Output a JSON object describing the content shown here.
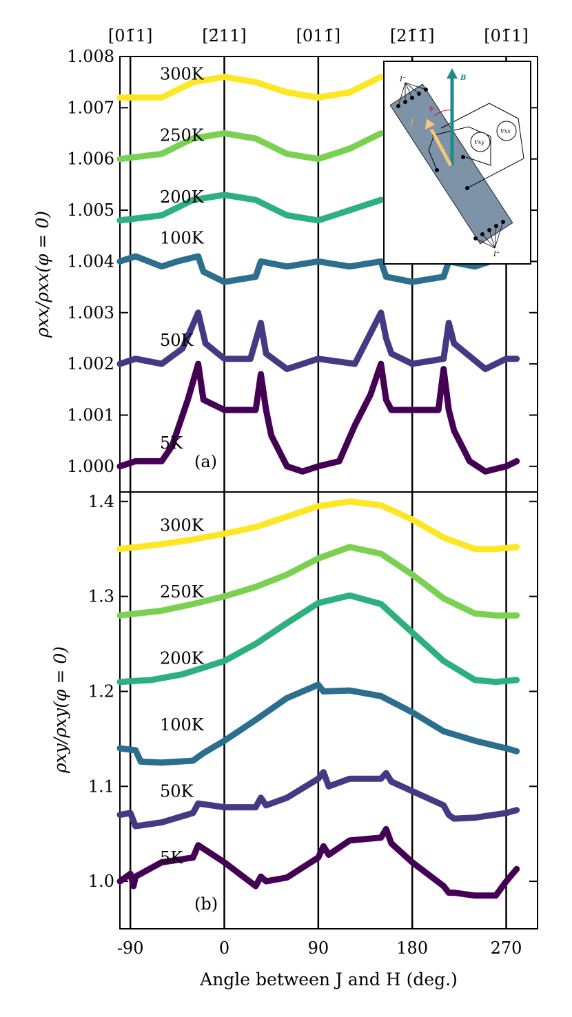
{
  "chart_data": [
    {
      "type": "line",
      "panel_label": "(a)",
      "ylabel": "ρxx/ρxx(φ = 0)",
      "xlabel": "",
      "xlim": [
        -100,
        300
      ],
      "ylim": [
        0.9995,
        1.008
      ],
      "yticks": [
        "1.000",
        "1.001",
        "1.002",
        "1.003",
        "1.004",
        "1.005",
        "1.006",
        "1.007",
        "1.008"
      ],
      "grid": false,
      "vlines": [
        -90,
        0,
        90,
        180,
        270
      ],
      "top_tick_labels": [
        "[01̄1]",
        "[2̄11]",
        "[011̄]",
        "[21̄1̄]",
        "[01̄1]"
      ],
      "series": [
        {
          "name": "300K",
          "color": "#fde725",
          "x": [
            -100,
            -60,
            -30,
            0,
            30,
            60,
            90,
            120,
            150
          ],
          "y": [
            1.0072,
            1.0072,
            1.0075,
            1.0076,
            1.0075,
            1.0073,
            1.0072,
            1.0073,
            1.0076
          ]
        },
        {
          "name": "250K",
          "color": "#7ad151",
          "x": [
            -100,
            -60,
            -30,
            0,
            30,
            60,
            90,
            120,
            150
          ],
          "y": [
            1.006,
            1.0061,
            1.0064,
            1.0065,
            1.0064,
            1.0061,
            1.006,
            1.0062,
            1.0065
          ]
        },
        {
          "name": "200K",
          "color": "#2cb17e",
          "x": [
            -100,
            -60,
            -30,
            0,
            30,
            60,
            90,
            120,
            150
          ],
          "y": [
            1.0048,
            1.0049,
            1.0052,
            1.0053,
            1.0052,
            1.0049,
            1.0048,
            1.005,
            1.0052
          ]
        },
        {
          "name": "100K",
          "color": "#2c6e8e",
          "x": [
            -100,
            -85,
            -60,
            -45,
            -25,
            -20,
            0,
            30,
            35,
            60,
            90,
            120,
            150,
            155,
            180,
            210,
            215,
            240,
            255,
            270,
            280
          ],
          "y": [
            1.004,
            1.0041,
            1.0039,
            1.004,
            1.0041,
            1.0038,
            1.0036,
            1.0037,
            1.004,
            1.0039,
            1.004,
            1.0039,
            1.004,
            1.0037,
            1.0036,
            1.0037,
            1.004,
            1.0039,
            1.004,
            1.004,
            1.004
          ]
        },
        {
          "name": "50K",
          "color": "#443a83",
          "x": [
            -100,
            -85,
            -60,
            -40,
            -25,
            -18,
            0,
            25,
            35,
            40,
            60,
            90,
            125,
            150,
            155,
            160,
            180,
            210,
            215,
            220,
            250,
            270,
            280
          ],
          "y": [
            1.002,
            1.0021,
            1.002,
            1.0023,
            1.003,
            1.0024,
            1.0021,
            1.0021,
            1.0028,
            1.0022,
            1.0019,
            1.0021,
            1.002,
            1.003,
            1.0025,
            1.0022,
            1.002,
            1.0021,
            1.0028,
            1.0024,
            1.0019,
            1.0021,
            1.0021
          ]
        },
        {
          "name": "5K",
          "color": "#440154",
          "x": [
            -100,
            -85,
            -60,
            -50,
            -35,
            -25,
            -20,
            -10,
            0,
            20,
            30,
            35,
            40,
            45,
            60,
            75,
            90,
            110,
            125,
            140,
            150,
            155,
            160,
            180,
            205,
            210,
            215,
            220,
            235,
            250,
            270,
            280
          ],
          "y": [
            1.0,
            1.0001,
            1.0001,
            1.0004,
            1.0013,
            1.002,
            1.0013,
            1.0012,
            1.0011,
            1.0011,
            1.0011,
            1.0018,
            1.0011,
            1.0006,
            1.0,
            0.9999,
            1.0,
            1.0001,
            1.0008,
            1.0014,
            1.002,
            1.0013,
            1.0011,
            1.0011,
            1.0011,
            1.0019,
            1.0011,
            1.0007,
            1.0001,
            0.9999,
            1.0,
            1.0001
          ]
        }
      ],
      "inset": {
        "labels": [
          "I⁻",
          "J",
          "ψ",
          "B",
          "Vxx",
          "Vxy",
          "I⁺"
        ]
      }
    },
    {
      "type": "line",
      "panel_label": "(b)",
      "ylabel": "ρxy/ρxy(φ = 0)",
      "xlabel": "Angle between J and H (deg.)",
      "xlim": [
        -100,
        300
      ],
      "ylim": [
        0.95,
        1.41
      ],
      "yticks": [
        "1.0",
        "1.1",
        "1.2",
        "1.3",
        "1.4"
      ],
      "xticks": [
        "-90",
        "0",
        "90",
        "180",
        "270"
      ],
      "grid": false,
      "vlines": [
        -90,
        0,
        90,
        180,
        270
      ],
      "series": [
        {
          "name": "300K",
          "color": "#fde725",
          "x": [
            -100,
            -60,
            -30,
            0,
            30,
            60,
            90,
            120,
            150,
            180,
            210,
            240,
            260,
            280
          ],
          "y": [
            1.35,
            1.355,
            1.36,
            1.366,
            1.373,
            1.384,
            1.395,
            1.4,
            1.396,
            1.381,
            1.362,
            1.35,
            1.35,
            1.352
          ]
        },
        {
          "name": "250K",
          "color": "#7ad151",
          "x": [
            -100,
            -60,
            -30,
            0,
            30,
            60,
            90,
            120,
            150,
            180,
            210,
            240,
            260,
            280
          ],
          "y": [
            1.28,
            1.285,
            1.292,
            1.3,
            1.31,
            1.323,
            1.34,
            1.352,
            1.345,
            1.323,
            1.298,
            1.282,
            1.28,
            1.28
          ]
        },
        {
          "name": "200K",
          "color": "#2cb17e",
          "x": [
            -100,
            -70,
            -40,
            -20,
            0,
            30,
            60,
            90,
            120,
            150,
            180,
            210,
            240,
            260,
            280
          ],
          "y": [
            1.21,
            1.212,
            1.218,
            1.225,
            1.232,
            1.25,
            1.272,
            1.293,
            1.301,
            1.292,
            1.262,
            1.232,
            1.212,
            1.21,
            1.212
          ]
        },
        {
          "name": "100K",
          "color": "#2c6e8e",
          "x": [
            -100,
            -85,
            -80,
            -60,
            -30,
            -20,
            0,
            30,
            60,
            90,
            95,
            120,
            150,
            180,
            210,
            240,
            270,
            280
          ],
          "y": [
            1.14,
            1.138,
            1.126,
            1.125,
            1.127,
            1.135,
            1.148,
            1.17,
            1.193,
            1.207,
            1.2,
            1.201,
            1.195,
            1.178,
            1.158,
            1.148,
            1.14,
            1.137
          ]
        },
        {
          "name": "50K",
          "color": "#443a83",
          "x": [
            -100,
            -90,
            -85,
            -60,
            -30,
            -25,
            0,
            30,
            35,
            40,
            60,
            90,
            95,
            100,
            120,
            150,
            155,
            160,
            180,
            210,
            215,
            220,
            240,
            270,
            280
          ],
          "y": [
            1.07,
            1.072,
            1.058,
            1.062,
            1.072,
            1.082,
            1.078,
            1.078,
            1.088,
            1.08,
            1.088,
            1.108,
            1.115,
            1.1,
            1.108,
            1.108,
            1.114,
            1.105,
            1.095,
            1.08,
            1.07,
            1.066,
            1.067,
            1.072,
            1.075
          ]
        },
        {
          "name": "5K",
          "color": "#440154",
          "x": [
            -100,
            -90,
            -87,
            -85,
            -60,
            -30,
            -25,
            0,
            30,
            35,
            40,
            60,
            90,
            95,
            100,
            120,
            150,
            155,
            160,
            180,
            210,
            215,
            220,
            240,
            260,
            270,
            280
          ],
          "y": [
            1.0,
            1.008,
            0.995,
            1.005,
            1.02,
            1.025,
            1.038,
            1.02,
            0.995,
            1.005,
            1.0,
            1.004,
            1.025,
            1.037,
            1.028,
            1.043,
            1.046,
            1.055,
            1.04,
            1.02,
            0.995,
            0.988,
            0.988,
            0.985,
            0.985,
            1.0,
            1.013
          ]
        }
      ]
    }
  ]
}
